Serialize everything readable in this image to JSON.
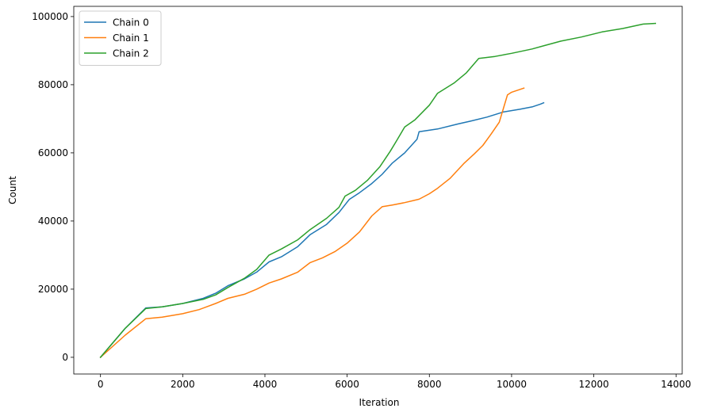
{
  "chart_data": {
    "type": "line",
    "xlabel": "Iteration",
    "ylabel": "Count",
    "xlim": [
      -650,
      14150
    ],
    "ylim": [
      -4900,
      103000
    ],
    "xticks": [
      0,
      2000,
      4000,
      6000,
      8000,
      10000,
      12000,
      14000
    ],
    "yticks": [
      0,
      20000,
      40000,
      60000,
      80000,
      100000
    ],
    "xtick_labels": [
      "0",
      "2000",
      "4000",
      "6000",
      "8000",
      "10000",
      "12000",
      "14000"
    ],
    "ytick_labels": [
      "0",
      "20000",
      "40000",
      "60000",
      "80000",
      "100000"
    ],
    "grid": false,
    "legend_position": "upper-left",
    "series": [
      {
        "name": "Chain 0",
        "color": "#1f77b4",
        "x": [
          0,
          600,
          1100,
          1500,
          2000,
          2500,
          2800,
          3100,
          3500,
          3800,
          4100,
          4400,
          4800,
          5100,
          5500,
          5800,
          6050,
          6300,
          6600,
          6850,
          7100,
          7400,
          7700,
          7750,
          8200,
          8700,
          9000,
          9400,
          9800,
          10200,
          10500,
          10700,
          10780
        ],
        "y": [
          0,
          8500,
          14500,
          14800,
          15800,
          17300,
          18800,
          21000,
          23000,
          25000,
          28000,
          29500,
          32500,
          36000,
          39000,
          42500,
          46300,
          48300,
          51000,
          53700,
          57000,
          60000,
          64000,
          66200,
          67000,
          68500,
          69300,
          70500,
          72000,
          72800,
          73500,
          74300,
          74700
        ]
      },
      {
        "name": "Chain 1",
        "color": "#ff7f0e",
        "x": [
          0,
          600,
          1100,
          1500,
          2000,
          2400,
          2800,
          3100,
          3500,
          3800,
          4100,
          4400,
          4800,
          5100,
          5400,
          5700,
          6000,
          6300,
          6600,
          6850,
          7100,
          7400,
          7750,
          8000,
          8200,
          8500,
          8850,
          9100,
          9300,
          9500,
          9700,
          9900,
          10000,
          10300
        ],
        "y": [
          0,
          6500,
          11300,
          11800,
          12800,
          14000,
          15800,
          17300,
          18500,
          20000,
          21800,
          23000,
          25000,
          27800,
          29200,
          31000,
          33500,
          36800,
          41500,
          44200,
          44700,
          45400,
          46400,
          48000,
          49600,
          52500,
          57000,
          59800,
          62200,
          65500,
          69000,
          77000,
          77800,
          79000
        ]
      },
      {
        "name": "Chain 2",
        "color": "#2ca02c",
        "x": [
          0,
          600,
          1100,
          1500,
          2000,
          2500,
          2800,
          3100,
          3500,
          3800,
          4100,
          4400,
          4800,
          5100,
          5500,
          5800,
          5950,
          6200,
          6500,
          6800,
          7050,
          7200,
          7400,
          7650,
          8000,
          8200,
          8600,
          8900,
          9200,
          9600,
          10000,
          10500,
          10800,
          11200,
          11700,
          12200,
          12700,
          13200,
          13500
        ],
        "y": [
          0,
          8500,
          14300,
          14800,
          15800,
          17000,
          18300,
          20500,
          23200,
          25800,
          30000,
          31800,
          34500,
          37500,
          40800,
          44000,
          47300,
          49000,
          52000,
          56000,
          60500,
          63500,
          67600,
          69700,
          74000,
          77500,
          80500,
          83500,
          87700,
          88300,
          89200,
          90500,
          91500,
          92800,
          94000,
          95500,
          96500,
          97800,
          98000
        ]
      }
    ]
  }
}
